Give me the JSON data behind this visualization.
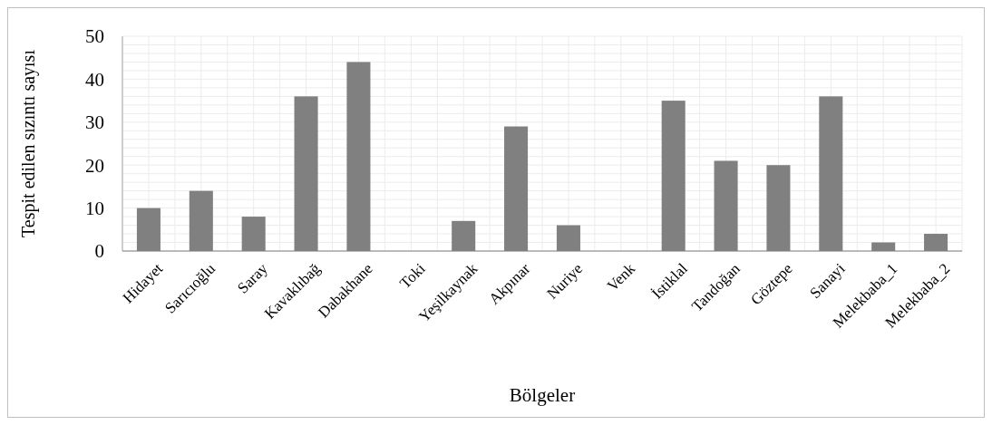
{
  "chart_data": {
    "type": "bar",
    "xlabel": "Bölgeler",
    "ylabel": "Tespit edilen sızıntı sayısı",
    "categories": [
      "Hidayet",
      "Sarıcıoğlu",
      "Saray",
      "Kavaklıbağ",
      "Dabakhane",
      "Toki",
      "Yeşilkaynak",
      "Akpınar",
      "Nuriye",
      "Venk",
      "İstiklal",
      "Tandoğan",
      "Göztepe",
      "Sanayi",
      "Melekbaba_1",
      "Melekbaba_2"
    ],
    "values": [
      10,
      14,
      8,
      36,
      44,
      0,
      7,
      29,
      6,
      0,
      35,
      21,
      20,
      36,
      2,
      4
    ],
    "color": "#808080",
    "ylim": [
      0,
      50
    ],
    "yticks": [
      0,
      {
        "value": 2,
        "label": null
      },
      {
        "value": 4,
        "label": null
      },
      {
        "value": 6,
        "label": null
      },
      {
        "value": 8,
        "label": null
      },
      10,
      {
        "value": 12,
        "label": null
      },
      {
        "value": 14,
        "label": null
      },
      {
        "value": 16,
        "label": null
      },
      {
        "value": 18,
        "label": null
      },
      20,
      {
        "value": 22,
        "label": null
      },
      {
        "value": 24,
        "label": null
      },
      {
        "value": 26,
        "label": null
      },
      {
        "value": 28,
        "label": null
      },
      30,
      {
        "value": 32,
        "label": null
      },
      {
        "value": 34,
        "label": null
      },
      {
        "value": 36,
        "label": null
      },
      {
        "value": 38,
        "label": null
      },
      40,
      {
        "value": 42,
        "label": null
      },
      {
        "value": 44,
        "label": null
      },
      {
        "value": 46,
        "label": null
      },
      {
        "value": 48,
        "label": null
      },
      50
    ],
    "grid": true
  }
}
